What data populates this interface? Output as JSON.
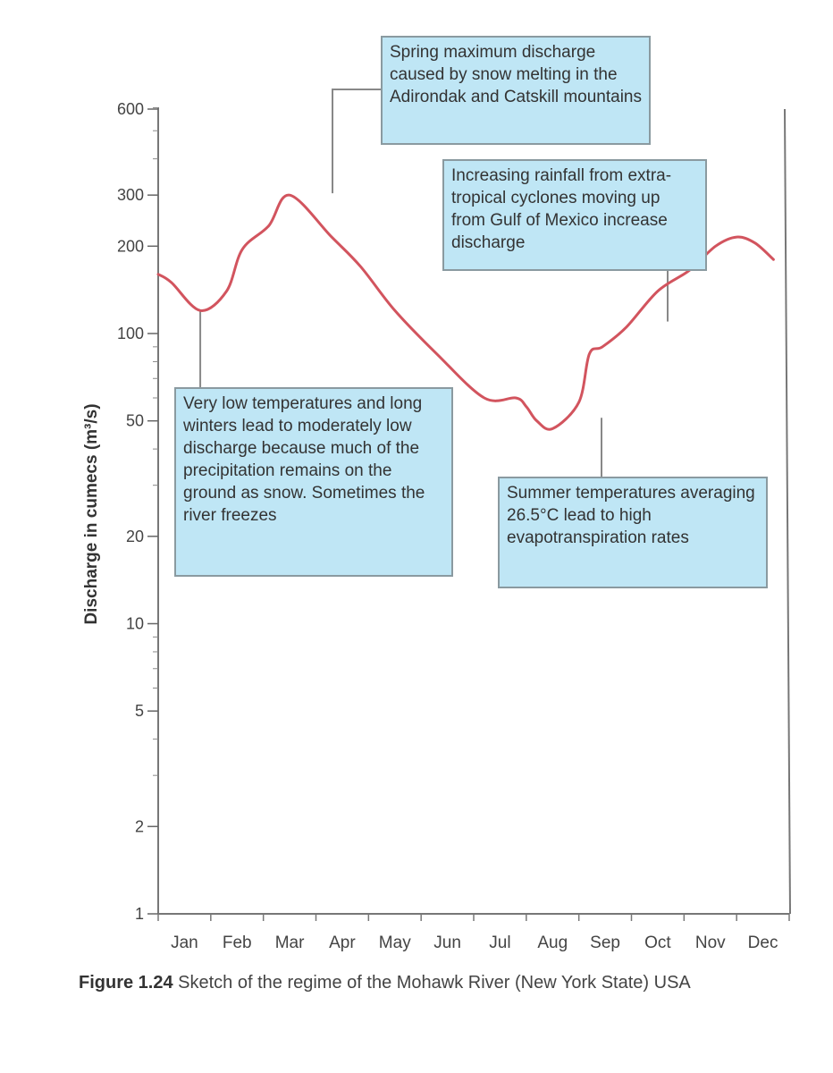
{
  "chart_data": {
    "type": "line",
    "ylabel": "Discharge in cumecs (m³/s)",
    "yscale": "log",
    "yticks": [
      1,
      2,
      5,
      10,
      20,
      50,
      100,
      200,
      300,
      600
    ],
    "ytick_labels": [
      "1",
      "2",
      "5",
      "10",
      "20",
      "50",
      "100",
      "200",
      "300",
      "600"
    ],
    "categories": [
      "Jan",
      "Feb",
      "Mar",
      "Apr",
      "May",
      "Jun",
      "Jul",
      "Aug",
      "Sep",
      "Oct",
      "Nov",
      "Dec"
    ],
    "series": [
      {
        "color": "#d2545e",
        "x": [
          0.0,
          0.25,
          0.8,
          1.3,
          1.6,
          2.1,
          2.5,
          3.3,
          3.85,
          4.5,
          5.3,
          6.2,
          6.8,
          7.0,
          7.2,
          7.5,
          8.0,
          8.2,
          8.45,
          8.9,
          9.5,
          10.1,
          10.6,
          11.0,
          11.35,
          11.7
        ],
        "values": [
          160,
          150,
          120,
          140,
          195,
          235,
          300,
          215,
          170,
          120,
          85,
          60,
          60,
          56,
          50,
          47,
          58,
          85,
          90,
          105,
          140,
          165,
          200,
          215,
          205,
          180
        ]
      }
    ],
    "annotations": [
      {
        "id": "winter",
        "text": "Very low temperatures and long winters lead to moderately low discharge because much of the precipitation remains on the ground as snow. Sometimes the river freezes",
        "point_x": 0.8,
        "point_y": 120
      },
      {
        "id": "spring",
        "text": "Spring maximum discharge caused by snow melting in the Adirondak and Catskill mountains",
        "point_x": 2.5,
        "point_y": 300
      },
      {
        "id": "autumn",
        "text": "Increasing rainfall from extra-tropical cyclones moving up from Gulf of Mexico increase discharge",
        "point_x": 10.0,
        "point_y": 110
      },
      {
        "id": "summer",
        "text": "Summer temperatures averaging 26.5°C lead to high evapotranspiration rates",
        "point_x": 8.0,
        "point_y": 55
      }
    ]
  },
  "caption": {
    "figure_number": "Figure 1.24",
    "text": " Sketch of the regime of the Mohawk River (New York State) USA"
  },
  "colors": {
    "line": "#d2545e",
    "callout_fill": "#bfe6f5",
    "axis": "#777777"
  }
}
